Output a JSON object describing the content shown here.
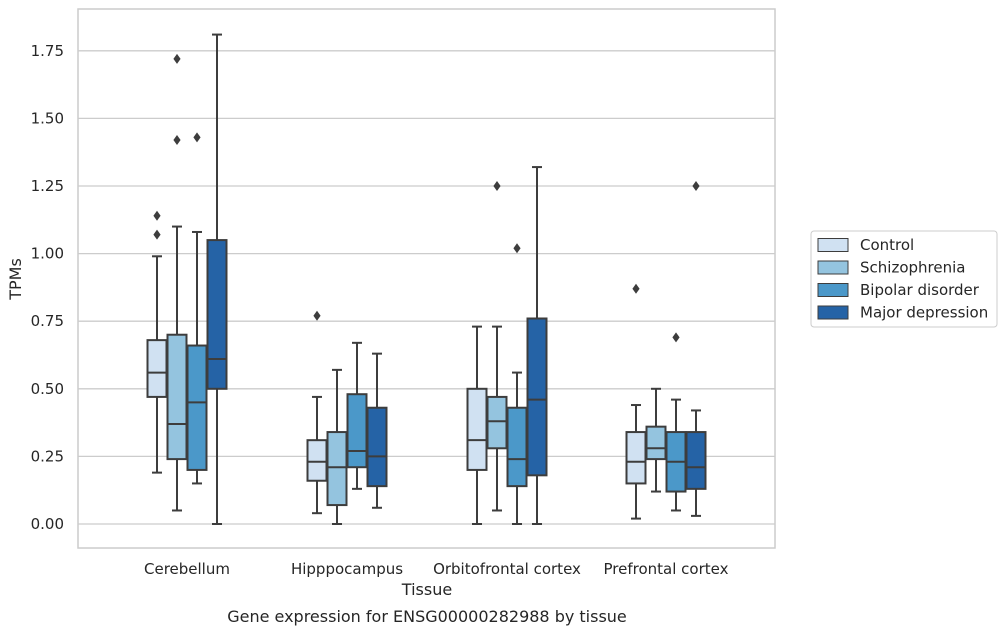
{
  "chart_data": {
    "type": "box",
    "title": "",
    "caption": "Gene expression for ENSG00000282988 by tissue",
    "xlabel": "Tissue",
    "ylabel": "TPMs",
    "ylim": [
      -0.09,
      1.9
    ],
    "yticks": [
      0.0,
      0.25,
      0.5,
      0.75,
      1.0,
      1.25,
      1.5,
      1.75
    ],
    "ytick_labels": [
      "0.00",
      "0.25",
      "0.50",
      "0.75",
      "1.00",
      "1.25",
      "1.50",
      "1.75"
    ],
    "grid": "horizontal",
    "legend_position": "right",
    "categories": [
      "Cerebellum",
      "Hipppocampus",
      "Orbitofrontal cortex",
      "Prefrontal cortex"
    ],
    "series": [
      {
        "name": "Control",
        "color": "#d0e1f2",
        "boxes": [
          {
            "whislo": 0.19,
            "q1": 0.47,
            "med": 0.56,
            "q3": 0.68,
            "whishi": 0.99,
            "fliers": [
              1.07,
              1.14
            ]
          },
          {
            "whislo": 0.04,
            "q1": 0.16,
            "med": 0.23,
            "q3": 0.31,
            "whishi": 0.47,
            "fliers": [
              0.77
            ]
          },
          {
            "whislo": 0.0,
            "q1": 0.2,
            "med": 0.31,
            "q3": 0.5,
            "whishi": 0.73,
            "fliers": []
          },
          {
            "whislo": 0.02,
            "q1": 0.15,
            "med": 0.23,
            "q3": 0.34,
            "whishi": 0.44,
            "fliers": [
              0.87
            ]
          }
        ]
      },
      {
        "name": "Schizophrenia",
        "color": "#94c4df",
        "boxes": [
          {
            "whislo": 0.05,
            "q1": 0.24,
            "med": 0.37,
            "q3": 0.7,
            "whishi": 1.1,
            "fliers": [
              1.42,
              1.72
            ]
          },
          {
            "whislo": 0.0,
            "q1": 0.07,
            "med": 0.21,
            "q3": 0.34,
            "whishi": 0.57,
            "fliers": []
          },
          {
            "whislo": 0.05,
            "q1": 0.28,
            "med": 0.38,
            "q3": 0.47,
            "whishi": 0.73,
            "fliers": [
              1.25
            ]
          },
          {
            "whislo": 0.12,
            "q1": 0.24,
            "med": 0.28,
            "q3": 0.36,
            "whishi": 0.5,
            "fliers": []
          }
        ]
      },
      {
        "name": "Bipolar disorder",
        "color": "#4b98c9",
        "boxes": [
          {
            "whislo": 0.15,
            "q1": 0.2,
            "med": 0.45,
            "q3": 0.66,
            "whishi": 1.08,
            "fliers": [
              1.43
            ]
          },
          {
            "whislo": 0.13,
            "q1": 0.21,
            "med": 0.27,
            "q3": 0.48,
            "whishi": 0.67,
            "fliers": []
          },
          {
            "whislo": 0.0,
            "q1": 0.14,
            "med": 0.24,
            "q3": 0.43,
            "whishi": 0.56,
            "fliers": [
              1.02
            ]
          },
          {
            "whislo": 0.05,
            "q1": 0.12,
            "med": 0.23,
            "q3": 0.34,
            "whishi": 0.46,
            "fliers": [
              0.69
            ]
          }
        ]
      },
      {
        "name": "Major depression",
        "color": "#2563a6",
        "boxes": [
          {
            "whislo": 0.0,
            "q1": 0.5,
            "med": 0.61,
            "q3": 1.05,
            "whishi": 1.81,
            "fliers": []
          },
          {
            "whislo": 0.06,
            "q1": 0.14,
            "med": 0.25,
            "q3": 0.43,
            "whishi": 0.63,
            "fliers": []
          },
          {
            "whislo": 0.0,
            "q1": 0.18,
            "med": 0.46,
            "q3": 0.76,
            "whishi": 1.32,
            "fliers": []
          },
          {
            "whislo": 0.03,
            "q1": 0.13,
            "med": 0.21,
            "q3": 0.34,
            "whishi": 0.42,
            "fliers": [
              1.25
            ]
          }
        ]
      }
    ]
  }
}
